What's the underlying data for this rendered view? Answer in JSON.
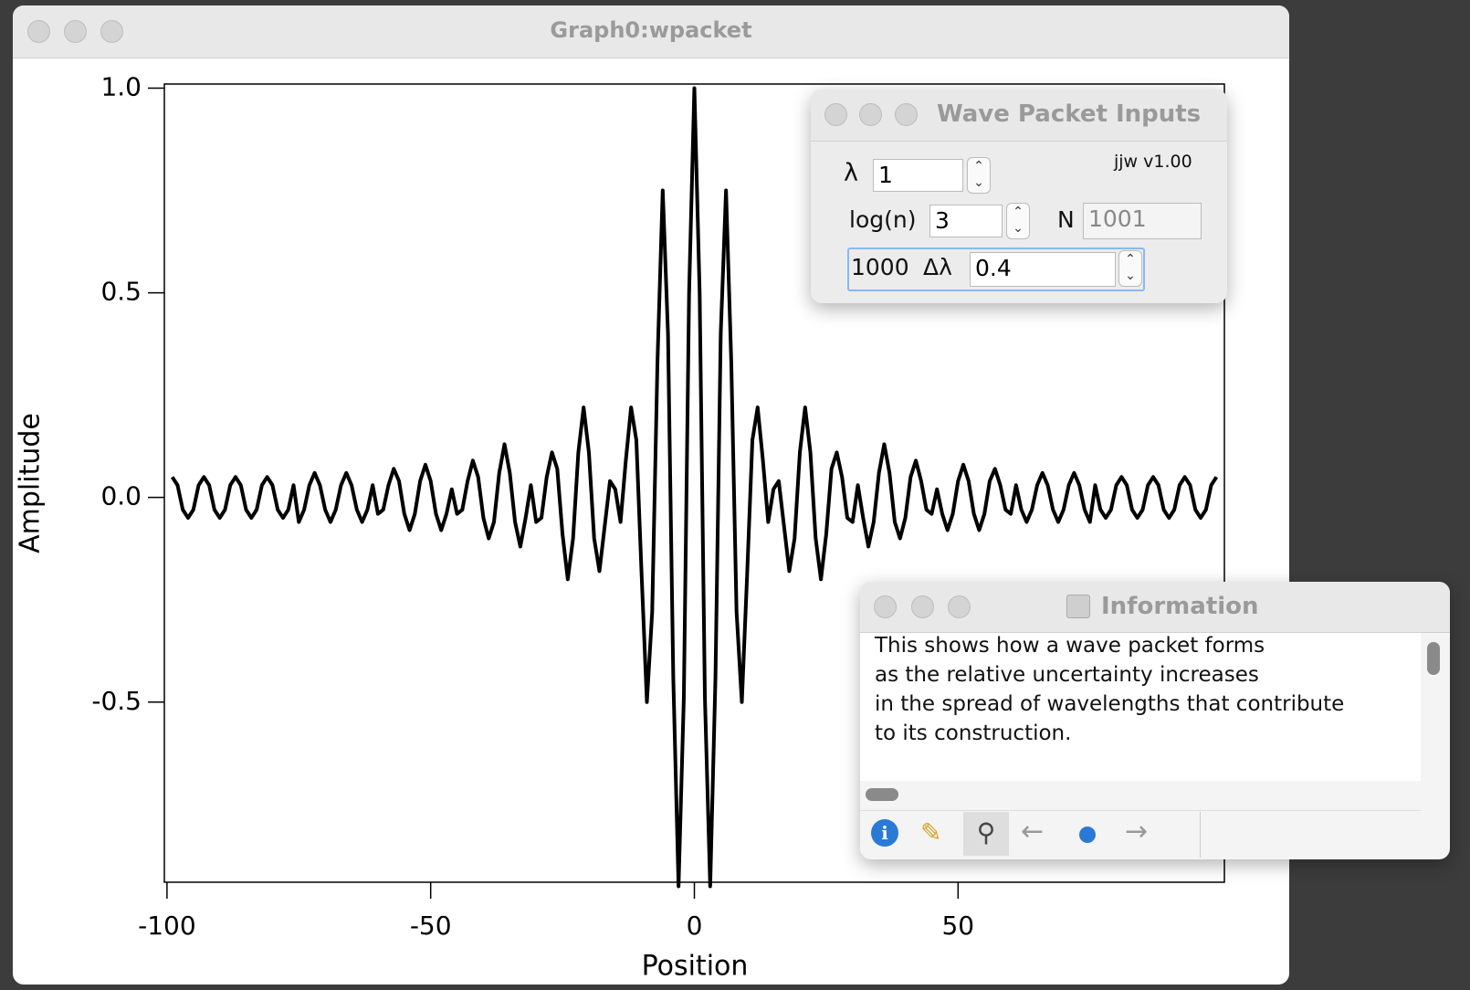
{
  "window": {
    "title": "Graph0:wpacket"
  },
  "chart_data": {
    "type": "line",
    "x_label": "Position",
    "y_label": "Amplitude",
    "x": [
      -99,
      -98,
      -97,
      -96,
      -95,
      -94,
      -93,
      -92,
      -91,
      -90,
      -89,
      -88,
      -87,
      -86,
      -85,
      -84,
      -83,
      -82,
      -81,
      -80,
      -79,
      -78,
      -77,
      -76,
      -75,
      -74,
      -73,
      -72,
      -71,
      -70,
      -69,
      -68,
      -67,
      -66,
      -65,
      -64,
      -63,
      -62,
      -61,
      -60,
      -59,
      -58,
      -57,
      -56,
      -55,
      -54,
      -53,
      -52,
      -51,
      -50,
      -49,
      -48,
      -47,
      -46,
      -45,
      -44,
      -43,
      -42,
      -41,
      -40,
      -39,
      -38,
      -37,
      -36,
      -35,
      -34,
      -33,
      -32,
      -31,
      -30,
      -29,
      -28,
      -27,
      -26,
      -25,
      -24,
      -23,
      -22,
      -21,
      -20,
      -19,
      -18,
      -17,
      -16,
      -15,
      -14,
      -13,
      -12,
      -11,
      -10,
      -9,
      -8,
      -7,
      -6,
      -5,
      -4,
      -3,
      -2,
      -1,
      0,
      1,
      2,
      3,
      4,
      5,
      6,
      7,
      8,
      9,
      10,
      11,
      12,
      13,
      14,
      15,
      16,
      17,
      18,
      19,
      20,
      21,
      22,
      23,
      24,
      25,
      26,
      27,
      28,
      29,
      30,
      31,
      32,
      33,
      34,
      35,
      36,
      37,
      38,
      39,
      40,
      41,
      42,
      43,
      44,
      45,
      46,
      47,
      48,
      49,
      50,
      51,
      52,
      53,
      54,
      55,
      56,
      57,
      58,
      59,
      60,
      61,
      62,
      63,
      64,
      65,
      66,
      67,
      68,
      69,
      70,
      71,
      72,
      73,
      74,
      75,
      76,
      77,
      78,
      79,
      80,
      81,
      82,
      83,
      84,
      85,
      86,
      87,
      88,
      89,
      90,
      91,
      92,
      93,
      94,
      95,
      96,
      97,
      98,
      99
    ],
    "values": [
      0.05,
      0.03,
      -0.03,
      -0.05,
      -0.03,
      0.03,
      0.05,
      0.03,
      -0.03,
      -0.05,
      -0.03,
      0.03,
      0.05,
      0.03,
      -0.03,
      -0.05,
      -0.03,
      0.03,
      0.05,
      0.03,
      -0.03,
      -0.05,
      -0.03,
      0.03,
      -0.06,
      -0.03,
      0.03,
      0.06,
      0.03,
      -0.03,
      -0.06,
      -0.03,
      0.03,
      0.06,
      0.03,
      -0.03,
      -0.06,
      -0.03,
      0.03,
      -0.04,
      -0.03,
      0.03,
      0.07,
      0.04,
      -0.04,
      -0.08,
      -0.04,
      0.04,
      0.08,
      0.04,
      -0.04,
      -0.08,
      -0.04,
      0.02,
      -0.04,
      -0.03,
      0.04,
      0.09,
      0.05,
      -0.05,
      -0.1,
      -0.06,
      0.06,
      0.13,
      0.06,
      -0.06,
      -0.12,
      -0.05,
      0.03,
      -0.06,
      -0.05,
      0.05,
      0.11,
      0.07,
      -0.09,
      -0.2,
      -0.1,
      0.11,
      0.22,
      0.11,
      -0.1,
      -0.18,
      -0.07,
      0.04,
      0.02,
      -0.06,
      0.09,
      0.22,
      0.14,
      -0.19,
      -0.5,
      -0.28,
      0.33,
      0.75,
      0.4,
      -0.44,
      -0.95,
      -0.49,
      0.5,
      1,
      0.5,
      -0.49,
      -0.95,
      -0.44,
      0.4,
      0.75,
      0.33,
      -0.28,
      -0.5,
      -0.19,
      0.14,
      0.22,
      0.09,
      -0.06,
      0.02,
      0.04,
      -0.07,
      -0.18,
      -0.1,
      0.11,
      0.22,
      0.11,
      -0.1,
      -0.2,
      -0.09,
      0.07,
      0.11,
      0.05,
      -0.05,
      -0.06,
      0.03,
      -0.05,
      -0.12,
      -0.06,
      0.06,
      0.13,
      0.06,
      -0.06,
      -0.1,
      -0.05,
      0.05,
      0.09,
      0.04,
      -0.03,
      -0.04,
      0.02,
      -0.04,
      -0.08,
      -0.04,
      0.04,
      0.08,
      0.04,
      -0.04,
      -0.08,
      -0.04,
      0.04,
      0.07,
      0.03,
      -0.03,
      -0.04,
      0.03,
      -0.03,
      -0.06,
      -0.03,
      0.03,
      0.06,
      0.03,
      -0.03,
      -0.06,
      -0.03,
      0.03,
      0.06,
      0.03,
      -0.03,
      -0.06,
      0.03,
      -0.03,
      -0.05,
      -0.03,
      0.03,
      0.05,
      0.03,
      -0.03,
      -0.05,
      -0.03,
      0.03,
      0.05,
      0.03,
      -0.03,
      -0.05,
      -0.03,
      0.03,
      0.05,
      0.03,
      -0.03,
      -0.05,
      -0.03,
      0.03,
      0.05
    ],
    "color": "#000000",
    "xlim": [
      -100.5,
      100.5
    ],
    "xticks": [
      -100,
      -50,
      0,
      50
    ],
    "ylim": [
      -0.94,
      1.01
    ],
    "yticks": [
      {
        "value": 1,
        "label": "1.0"
      },
      0.5,
      {
        "value": 0,
        "label": "0.0"
      },
      -0.5
    ],
    "grid": false
  },
  "inputs_panel": {
    "title": "Wave Packet Inputs",
    "version": "jjw v1.00",
    "lambda_label": "λ",
    "lambda_value": 1,
    "logn_label": "log(n)",
    "logn_value": 3,
    "n_label": "N",
    "n_value": 1001,
    "count": 1000,
    "dlambda_label": "Δλ",
    "dlambda_value": 0.4
  },
  "info_panel": {
    "title": "Information",
    "lines": [
      "This shows how a wave packet forms",
      "as the relative uncertainty increases",
      "in the spread of wavelengths that contribute",
      "to its construction."
    ]
  }
}
